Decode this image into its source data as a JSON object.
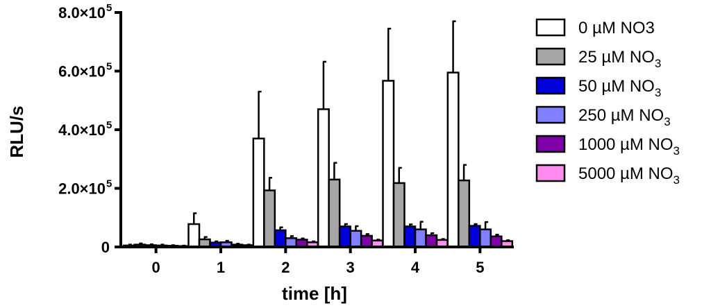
{
  "chart_data": {
    "type": "bar",
    "xlabel": "time [h]",
    "ylabel": "RLU/s",
    "ylim": [
      0,
      800000
    ],
    "y_ticks": [
      {
        "value": 0,
        "mant": "0",
        "exp": ""
      },
      {
        "value": 200000,
        "mant": "2.0×10",
        "exp": "5"
      },
      {
        "value": 400000,
        "mant": "4.0×10",
        "exp": "5"
      },
      {
        "value": 600000,
        "mant": "6.0×10",
        "exp": "5"
      },
      {
        "value": 800000,
        "mant": "8.0×10",
        "exp": "5"
      }
    ],
    "categories": [
      "0",
      "1",
      "2",
      "3",
      "4",
      "5"
    ],
    "legend_position": "right",
    "series": [
      {
        "name": "0 µM NO3",
        "name_base": "0 µM NO3",
        "name_sub": "",
        "color": "#ffffff",
        "values": [
          5000,
          78000,
          370000,
          470000,
          567000,
          595000
        ],
        "errors": [
          3000,
          37000,
          160000,
          162000,
          178000,
          175000
        ]
      },
      {
        "name": "25 µM NO3",
        "name_base": "25 µM NO",
        "name_sub": "3",
        "color": "#a6a6a6",
        "values": [
          8000,
          26000,
          193000,
          230000,
          218000,
          227000
        ],
        "errors": [
          4000,
          8000,
          43000,
          57000,
          52000,
          53000
        ]
      },
      {
        "name": "50 µM NO3",
        "name_base": "50 µM NO",
        "name_sub": "3",
        "color": "#0000d8",
        "values": [
          6000,
          15000,
          57000,
          70000,
          70000,
          72000
        ],
        "errors": [
          3000,
          4000,
          10000,
          8000,
          7000,
          6000
        ]
      },
      {
        "name": "250 µM NO3",
        "name_base": "250 µM NO",
        "name_sub": "3",
        "color": "#8080ff",
        "values": [
          5000,
          16000,
          30000,
          55000,
          60000,
          60000
        ],
        "errors": [
          3000,
          5000,
          7000,
          16000,
          26000,
          25000
        ]
      },
      {
        "name": "1000 µM NO3",
        "name_base": "1000 µM NO",
        "name_sub": "3",
        "color": "#7f00a8",
        "values": [
          4000,
          8000,
          25000,
          38000,
          40000,
          36000
        ],
        "errors": [
          2000,
          3000,
          4000,
          6000,
          7000,
          6000
        ]
      },
      {
        "name": "5000 µM NO3",
        "name_base": "5000 µM NO",
        "name_sub": "3",
        "color": "#ff8cf0",
        "values": [
          3000,
          6000,
          16000,
          22000,
          24000,
          20000
        ],
        "errors": [
          1500,
          2000,
          3000,
          3000,
          3000,
          3000
        ]
      }
    ]
  }
}
